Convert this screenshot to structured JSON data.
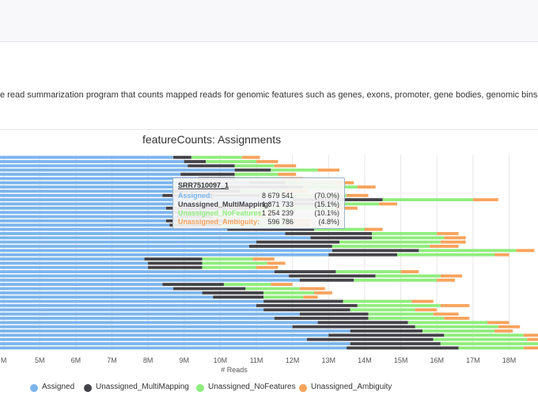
{
  "description": "e read summarization program that counts mapped reads for genomic features such as genes, exons, promoter, gene bodies, genomic bins and chromosomal",
  "chart_data": {
    "type": "bar",
    "orientation": "horizontal",
    "stacked": true,
    "title": "featureCounts: Assignments",
    "xlabel": "# Reads",
    "xlim": [
      3.9,
      18.8
    ],
    "xtick_values": [
      4,
      5,
      6,
      7,
      8,
      9,
      10,
      11,
      12,
      13,
      14,
      15,
      16,
      17,
      18
    ],
    "xtick_labels": [
      "M",
      "5M",
      "6M",
      "7M",
      "8M",
      "9M",
      "10M",
      "11M",
      "12M",
      "13M",
      "14M",
      "15M",
      "16M",
      "17M",
      "18M"
    ],
    "grid": true,
    "legend_position": "bottom",
    "series": [
      {
        "name": "Assigned",
        "color": "#7cb5ec"
      },
      {
        "name": "Unassigned_MultiMapping",
        "color": "#434348"
      },
      {
        "name": "Unassigned_NoFeatures",
        "color": "#90ed7d"
      },
      {
        "name": "Unassigned_Ambiguity",
        "color": "#f7a35c"
      }
    ],
    "samples": [
      {
        "values": [
          8.7,
          0.5,
          1.4,
          0.5
        ]
      },
      {
        "values": [
          9.0,
          0.6,
          1.4,
          0.6
        ]
      },
      {
        "values": [
          9.1,
          1.3,
          1.1,
          0.6
        ]
      },
      {
        "values": [
          10.4,
          1.0,
          1.3,
          0.6
        ]
      },
      {
        "values": [
          8.9,
          1.5,
          1.2,
          0.5
        ]
      },
      {
        "values": [
          9.4,
          1.0,
          1.3,
          0.6
        ]
      },
      {
        "values": [
          10.8,
          1.0,
          1.4,
          0.5
        ]
      },
      {
        "values": [
          10.0,
          2.3,
          1.5,
          0.5
        ]
      },
      {
        "values": [
          8.68,
          1.87,
          1.25,
          0.6
        ]
      },
      {
        "values": [
          8.4,
          2.7,
          2.4,
          0.6
        ]
      },
      {
        "values": [
          12.0,
          2.5,
          2.5,
          0.7
        ]
      },
      {
        "values": [
          12.0,
          1.2,
          1.2,
          0.5
        ]
      },
      {
        "values": [
          8.5,
          2.4,
          2.3,
          0.6
        ]
      },
      {
        "values": [
          8.7,
          1.0,
          1.3,
          0.5
        ]
      },
      {
        "values": [
          8.8,
          1.0,
          1.2,
          0.4
        ]
      },
      {
        "values": [
          8.5,
          2.0,
          1.5,
          0.5
        ]
      },
      {
        "values": [
          8.6,
          1.4,
          1.8,
          0.7
        ]
      },
      {
        "values": [
          10.2,
          2.4,
          1.4,
          0.5
        ]
      },
      {
        "values": [
          11.8,
          2.4,
          1.8,
          0.6
        ]
      },
      {
        "values": [
          12.5,
          1.7,
          2.0,
          0.6
        ]
      },
      {
        "values": [
          11.0,
          2.3,
          2.8,
          0.7
        ]
      },
      {
        "values": [
          10.8,
          2.3,
          2.7,
          0.8
        ]
      },
      {
        "values": [
          13.1,
          2.4,
          2.7,
          0.5
        ]
      },
      {
        "values": [
          13.0,
          1.9,
          2.7,
          0.4
        ]
      },
      {
        "values": [
          7.9,
          1.6,
          1.4,
          0.6
        ]
      },
      {
        "values": [
          8.0,
          1.5,
          1.8,
          0.5
        ]
      },
      {
        "values": [
          8.0,
          1.5,
          1.5,
          0.6
        ]
      },
      {
        "values": [
          11.5,
          1.7,
          1.8,
          0.5
        ]
      },
      {
        "values": [
          11.9,
          2.4,
          1.8,
          0.6
        ]
      },
      {
        "values": [
          12.2,
          1.5,
          2.3,
          0.5
        ]
      },
      {
        "values": [
          8.4,
          1.7,
          1.3,
          0.6
        ]
      },
      {
        "values": [
          8.7,
          2.0,
          1.5,
          0.7
        ]
      },
      {
        "values": [
          9.5,
          1.7,
          1.4,
          0.5
        ]
      },
      {
        "values": [
          9.8,
          1.4,
          1.1,
          0.4
        ]
      },
      {
        "values": [
          11.2,
          2.2,
          1.9,
          0.6
        ]
      },
      {
        "values": [
          11.0,
          2.8,
          2.3,
          0.8
        ]
      },
      {
        "values": [
          11.2,
          2.4,
          1.8,
          0.6
        ]
      },
      {
        "values": [
          12.2,
          1.9,
          1.8,
          0.7
        ]
      },
      {
        "values": [
          11.5,
          2.6,
          2.1,
          0.7
        ]
      },
      {
        "values": [
          12.7,
          2.5,
          2.2,
          0.6
        ]
      },
      {
        "values": [
          12.0,
          3.4,
          2.3,
          0.6
        ]
      },
      {
        "values": [
          13.6,
          2.0,
          2.0,
          0.5
        ]
      },
      {
        "values": [
          13.0,
          3.2,
          2.2,
          0.6
        ]
      },
      {
        "values": [
          12.4,
          3.5,
          2.6,
          0.5
        ]
      },
      {
        "values": [
          13.6,
          2.5,
          2.8,
          0.4
        ]
      },
      {
        "values": [
          13.5,
          3.1,
          1.8,
          0.5
        ]
      }
    ]
  },
  "tooltip": {
    "title": "SRR7510097_1",
    "rows": [
      {
        "label": "Assigned:",
        "value": "8 679 541",
        "percent": "(70.0%)",
        "color": "#7cb5ec"
      },
      {
        "label": "Unassigned_MultiMapping:",
        "value": "1 871 733",
        "percent": "(15.1%)",
        "color": "#434348"
      },
      {
        "label": "Unassigned_NoFeatures:",
        "value": "1 254 239",
        "percent": "(10.1%)",
        "color": "#90ed7d"
      },
      {
        "label": "Unassigned_Ambiguity:",
        "value": "596 786",
        "percent": "(4.8%)",
        "color": "#f7a35c"
      }
    ]
  }
}
